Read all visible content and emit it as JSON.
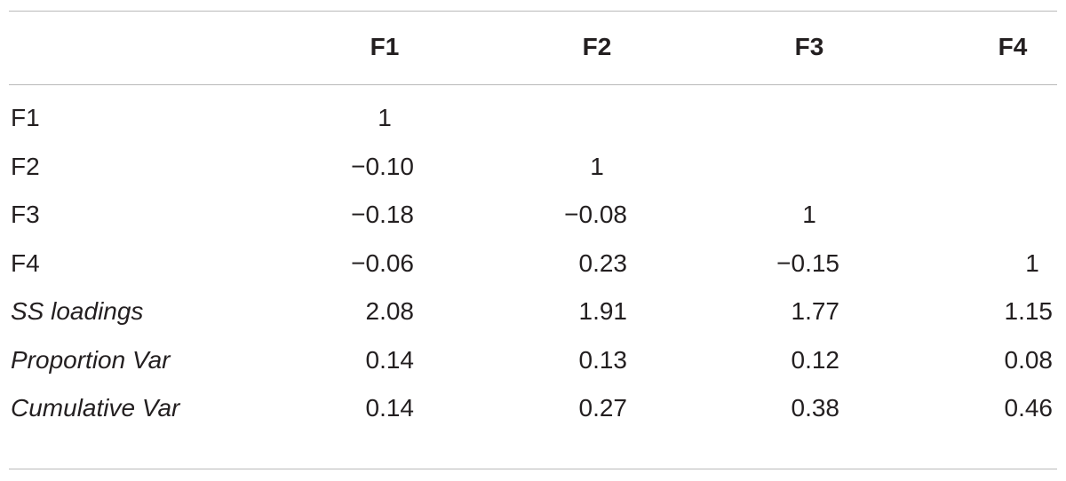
{
  "table": {
    "header": [
      "F1",
      "F2",
      "F3",
      "F4"
    ],
    "rows": [
      [
        "F1",
        "1"
      ],
      [
        "F2",
        "−0.10",
        "1"
      ],
      [
        "F3",
        "−0.18",
        "−0.08",
        "1"
      ],
      [
        "F4",
        "−0.06",
        "0.23",
        "−0.15",
        "1"
      ],
      [
        "SS loadings",
        "2.08",
        "1.91",
        "1.77",
        "1.15"
      ],
      [
        "Proportion Var",
        "0.14",
        "0.13",
        "0.12",
        "0.08"
      ],
      [
        "Cumulative Var",
        "0.14",
        "0.27",
        "0.38",
        "0.46"
      ]
    ]
  }
}
